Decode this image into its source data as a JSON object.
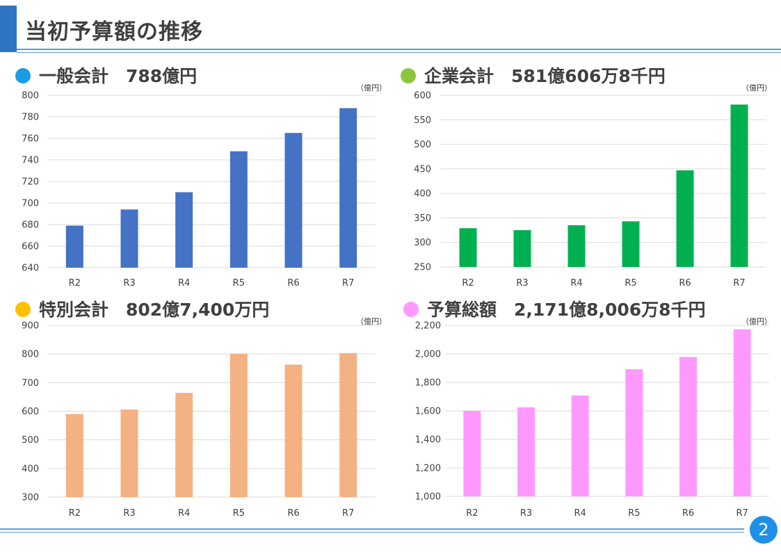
{
  "title": "当初予算額の推移",
  "page_number": "2",
  "panels": [
    {
      "heading": "一般会計　788億円",
      "dot_color": "#1a9be6"
    },
    {
      "heading": "企業会計　581億606万8千円",
      "dot_color": "#8cc63f"
    },
    {
      "heading": "特別会計　802億7,400万円",
      "dot_color": "#ffc000"
    },
    {
      "heading": "予算総額　2,171億8,006万8千円",
      "dot_color": "#ff99ff"
    }
  ],
  "chart_data": [
    {
      "type": "bar",
      "unit": "（億円）",
      "categories": [
        "R2",
        "R3",
        "R4",
        "R5",
        "R6",
        "R7"
      ],
      "values": [
        679,
        694,
        710,
        748,
        765,
        788
      ],
      "ylim": [
        640,
        800
      ],
      "yticks": [
        640,
        660,
        680,
        700,
        720,
        740,
        760,
        780,
        800
      ],
      "ytick_labels": [
        "640",
        "660",
        "680",
        "700",
        "720",
        "740",
        "760",
        "780",
        "800"
      ],
      "color": "#4472c4",
      "grid": true
    },
    {
      "type": "bar",
      "unit": "（億円）",
      "categories": [
        "R2",
        "R3",
        "R4",
        "R5",
        "R6",
        "R7"
      ],
      "values": [
        329,
        325,
        335,
        343,
        447,
        581
      ],
      "ylim": [
        250,
        600
      ],
      "yticks": [
        250,
        300,
        350,
        400,
        450,
        500,
        550,
        600
      ],
      "ytick_labels": [
        "250",
        "300",
        "350",
        "400",
        "450",
        "500",
        "550",
        "600"
      ],
      "color": "#00b050",
      "grid": true
    },
    {
      "type": "bar",
      "unit": "（億円）",
      "categories": [
        "R2",
        "R3",
        "R4",
        "R5",
        "R6",
        "R7"
      ],
      "values": [
        590,
        606,
        664,
        801,
        763,
        803
      ],
      "ylim": [
        300,
        900
      ],
      "yticks": [
        300,
        400,
        500,
        600,
        700,
        800,
        900
      ],
      "ytick_labels": [
        "300",
        "400",
        "500",
        "600",
        "700",
        "800",
        "900"
      ],
      "color": "#f4b183",
      "grid": true
    },
    {
      "type": "bar",
      "unit": "（億円）",
      "categories": [
        "R2",
        "R3",
        "R4",
        "R5",
        "R6",
        "R7"
      ],
      "values": [
        1600,
        1625,
        1708,
        1892,
        1978,
        2172
      ],
      "ylim": [
        1000,
        2200
      ],
      "yticks": [
        1000,
        1200,
        1400,
        1600,
        1800,
        2000,
        2200
      ],
      "ytick_labels": [
        "1,000",
        "1,200",
        "1,400",
        "1,600",
        "1,800",
        "2,000",
        "2,200"
      ],
      "color": "#ff99ff",
      "grid": true
    }
  ]
}
